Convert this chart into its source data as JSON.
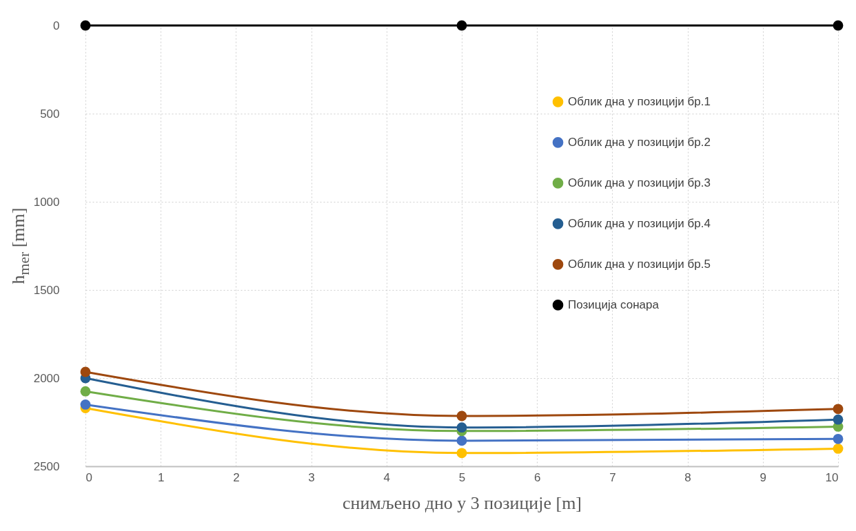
{
  "chart_data": {
    "type": "line",
    "xlabel": "снимљено дно у 3 позиције [m]",
    "ylabel": "h$_{mer}$ [mm]",
    "x": [
      0,
      5,
      10
    ],
    "xlim": [
      0,
      10
    ],
    "xticks": [
      0,
      1,
      2,
      3,
      4,
      5,
      6,
      7,
      8,
      9,
      10
    ],
    "ylim": [
      2500,
      0
    ],
    "yticks": [
      0,
      500,
      1000,
      1500,
      2000,
      2500
    ],
    "grid": true,
    "legend": "right",
    "marker": "circle",
    "line_style": "solid",
    "series": [
      {
        "name": "Облик дна у позицији бр.1",
        "color": "#ffc000",
        "values": [
          2170,
          2425,
          2400
        ]
      },
      {
        "name": "Облик дна у позицији бр.2",
        "color": "#4472c4",
        "values": [
          2150,
          2355,
          2345
        ]
      },
      {
        "name": "Облик дна у позицији бр.3",
        "color": "#70ad47",
        "values": [
          2075,
          2300,
          2275
        ]
      },
      {
        "name": "Облик дна у позицији бр.4",
        "color": "#255e91",
        "values": [
          2000,
          2280,
          2235
        ]
      },
      {
        "name": "Облик дна у позицији бр.5",
        "color": "#9e480e",
        "values": [
          1965,
          2215,
          2175
        ]
      },
      {
        "name": "Позиција сонара",
        "color": "#000000",
        "values": [
          0,
          0,
          0
        ]
      }
    ]
  }
}
